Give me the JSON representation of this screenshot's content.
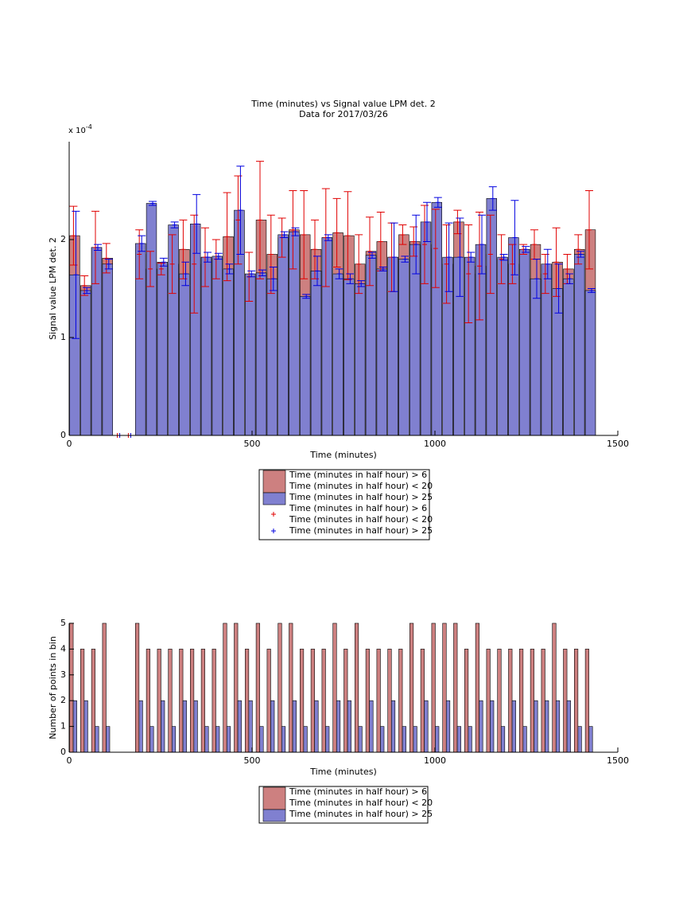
{
  "chart_data": [
    {
      "type": "bar",
      "barmode": "overlay",
      "title": "Time (minutes) vs Signal value LPM det. 2",
      "subtitle": "Data for 2017/03/26",
      "ymultiplier": {
        "base": "x 10",
        "exponent": "-4"
      },
      "xlabel": "Time (minutes)",
      "ylabel": "Signal value LPM det. 2",
      "xlim": [
        0,
        1500
      ],
      "xticks": [
        0,
        500,
        1000,
        1500
      ],
      "ylim": [
        0,
        3
      ],
      "yticks": [
        0,
        1,
        2
      ],
      "x": [
        15,
        45,
        75,
        105,
        135,
        165,
        195,
        225,
        255,
        285,
        315,
        345,
        375,
        405,
        435,
        465,
        495,
        525,
        555,
        585,
        615,
        645,
        675,
        705,
        735,
        765,
        795,
        825,
        855,
        885,
        915,
        945,
        975,
        1005,
        1035,
        1065,
        1095,
        1125,
        1155,
        1185,
        1215,
        1245,
        1275,
        1305,
        1335,
        1365,
        1395,
        1425
      ],
      "series": [
        {
          "name": "Time (minutes in half hour) > 6\nTime (minutes in half hour) < 20",
          "color": "#cd8080",
          "error_color": "#e00000",
          "error_name": "Time (minutes in half hour) > 6\nTime (minutes in half hour) < 20",
          "values": [
            2.04,
            1.53,
            1.92,
            1.81,
            0,
            0,
            1.85,
            1.7,
            1.7,
            1.75,
            1.9,
            1.75,
            1.82,
            1.8,
            2.03,
            2.2,
            1.62,
            2.2,
            1.85,
            2.02,
            2.1,
            2.05,
            1.9,
            2.02,
            2.07,
            2.04,
            1.75,
            1.88,
            1.98,
            1.82,
            2.05,
            1.98,
            1.95,
            1.91,
            1.75,
            2.18,
            1.65,
            1.73,
            1.85,
            1.8,
            1.75,
            1.9,
            1.95,
            1.65,
            1.77,
            1.7,
            1.9,
            2.1
          ],
          "errors": [
            0.3,
            0.1,
            0.37,
            0.15,
            0,
            0,
            0.25,
            0.18,
            0.06,
            0.3,
            0.3,
            0.5,
            0.3,
            0.2,
            0.45,
            0.45,
            0.25,
            0.6,
            0.4,
            0.2,
            0.4,
            0.45,
            0.3,
            0.5,
            0.35,
            0.45,
            0.3,
            0.35,
            0.3,
            0.35,
            0.1,
            0.15,
            0.4,
            0.4,
            0.4,
            0.12,
            0.5,
            0.55,
            0.4,
            0.25,
            0.2,
            0.05,
            0.15,
            0.2,
            0.35,
            0.15,
            0.15,
            0.4
          ]
        },
        {
          "name": "Time (minutes in half hour) > 25",
          "color": "#8080d0",
          "error_color": "#0000e0",
          "error_name": "Time (minutes in half hour) > 25",
          "values": [
            1.64,
            1.48,
            1.92,
            1.75,
            0,
            0,
            1.96,
            2.37,
            1.77,
            2.15,
            1.65,
            2.16,
            1.82,
            1.83,
            1.7,
            2.3,
            1.65,
            1.66,
            1.6,
            2.05,
            2.08,
            1.42,
            1.68,
            2.02,
            1.65,
            1.6,
            1.55,
            1.84,
            1.7,
            1.82,
            1.8,
            1.95,
            2.18,
            2.38,
            1.82,
            1.82,
            1.82,
            1.95,
            2.42,
            1.82,
            2.02,
            1.9,
            1.6,
            1.75,
            1.5,
            1.6,
            1.85,
            1.48
          ],
          "errors": [
            0.65,
            0.03,
            0.03,
            0.05,
            0,
            0,
            0.08,
            0.02,
            0.04,
            0.03,
            0.12,
            0.3,
            0.05,
            0.03,
            0.05,
            0.45,
            0.03,
            0.03,
            0.12,
            0.03,
            0.04,
            0.02,
            0.15,
            0.03,
            0.05,
            0.05,
            0.03,
            0.03,
            0.02,
            0.35,
            0.03,
            0.3,
            0.2,
            0.05,
            0.35,
            0.4,
            0.05,
            0.3,
            0.12,
            0.03,
            0.38,
            0.03,
            0.2,
            0.15,
            0.25,
            0.05,
            0.03,
            0.02
          ]
        }
      ]
    },
    {
      "type": "bar",
      "barmode": "group",
      "xlabel": "Time (minutes)",
      "ylabel": "Number of points in bin",
      "xlim": [
        0,
        1500
      ],
      "xticks": [
        0,
        500,
        1000,
        1500
      ],
      "ylim": [
        0,
        5
      ],
      "yticks": [
        0,
        1,
        2,
        3,
        4,
        5
      ],
      "x": [
        15,
        45,
        75,
        105,
        135,
        165,
        195,
        225,
        255,
        285,
        315,
        345,
        375,
        405,
        435,
        465,
        495,
        525,
        555,
        585,
        615,
        645,
        675,
        705,
        735,
        765,
        795,
        825,
        855,
        885,
        915,
        945,
        975,
        1005,
        1035,
        1065,
        1095,
        1125,
        1155,
        1185,
        1215,
        1245,
        1275,
        1305,
        1335,
        1365,
        1395,
        1425
      ],
      "series": [
        {
          "name": "Time (minutes in half hour) > 6\nTime (minutes in half hour) < 20",
          "color": "#cd8080",
          "values": [
            5,
            4,
            4,
            5,
            0,
            0,
            5,
            4,
            4,
            4,
            4,
            4,
            4,
            4,
            5,
            5,
            4,
            5,
            4,
            5,
            5,
            4,
            4,
            4,
            5,
            4,
            5,
            4,
            4,
            4,
            4,
            5,
            4,
            5,
            5,
            5,
            4,
            5,
            4,
            4,
            4,
            4,
            4,
            4,
            5,
            4,
            4,
            4
          ]
        },
        {
          "name": "Time (minutes in half hour) > 25",
          "color": "#8080d0",
          "values": [
            2,
            2,
            1,
            1,
            0,
            0,
            2,
            1,
            2,
            1,
            2,
            2,
            1,
            1,
            1,
            2,
            2,
            1,
            2,
            1,
            2,
            1,
            2,
            1,
            2,
            2,
            1,
            2,
            1,
            2,
            1,
            1,
            2,
            1,
            2,
            1,
            1,
            2,
            2,
            1,
            2,
            1,
            2,
            2,
            2,
            2,
            1,
            1
          ]
        }
      ]
    }
  ]
}
